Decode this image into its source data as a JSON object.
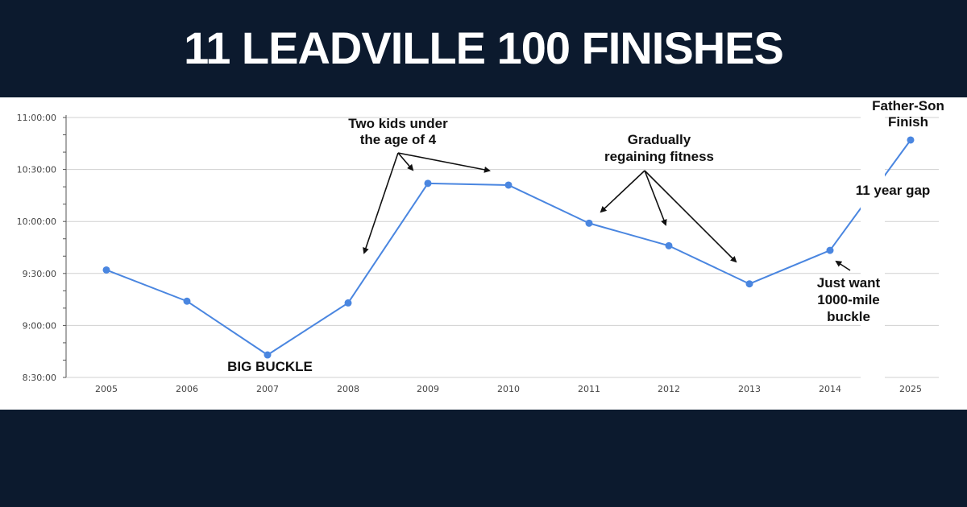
{
  "header": {
    "title": "11 LEADVILLE 100 FINISHES"
  },
  "colors": {
    "banner": "#0c1a2e",
    "line": "#4a86e0",
    "grid": "#d0d0d0",
    "annotation": "#111111"
  },
  "chart_data": {
    "type": "line",
    "categories": [
      "2005",
      "2006",
      "2007",
      "2008",
      "2009",
      "2010",
      "2011",
      "2012",
      "2013",
      "2014",
      "2025"
    ],
    "y_tick_labels": [
      "8:30:00",
      "9:00:00",
      "9:30:00",
      "10:00:00",
      "10:30:00",
      "11:00:00"
    ],
    "y_ticks_seconds": [
      30600,
      32400,
      34200,
      36000,
      37800,
      39600
    ],
    "ylim_seconds": [
      30600,
      39600
    ],
    "series": [
      {
        "values_seconds": [
          34320,
          33240,
          31380,
          33180,
          37320,
          37260,
          35940,
          35160,
          33840,
          35000,
          38820
        ]
      }
    ],
    "grid": true,
    "axis_break_after": "2014",
    "annotations": [
      {
        "id": "big-buckle",
        "lines": [
          "BIG BUCKLE"
        ]
      },
      {
        "id": "two-kids",
        "lines": [
          "Two kids under",
          "the age of 4"
        ]
      },
      {
        "id": "gradually",
        "lines": [
          "Gradually",
          "regaining fitness"
        ]
      },
      {
        "id": "just-want",
        "lines": [
          "Just want",
          "1000-mile",
          "buckle"
        ]
      },
      {
        "id": "gap",
        "lines": [
          "11 year gap"
        ]
      },
      {
        "id": "father-son",
        "lines": [
          "Father-Son",
          "Finish"
        ]
      }
    ]
  }
}
